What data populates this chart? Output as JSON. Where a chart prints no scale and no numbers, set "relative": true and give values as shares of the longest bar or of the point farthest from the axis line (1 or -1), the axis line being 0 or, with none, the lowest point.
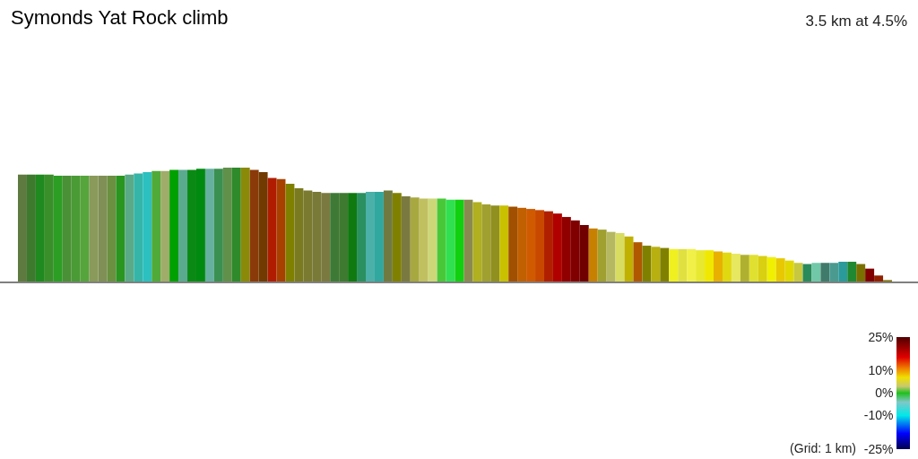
{
  "chart_data": {
    "type": "bar",
    "title": "Symonds Yat Rock climb",
    "relative": true,
    "categories": [
      null,
      null,
      null,
      null,
      null,
      null,
      null,
      null,
      null,
      null,
      null,
      null,
      null,
      null,
      null,
      null,
      null,
      null,
      null,
      null,
      null,
      null,
      null,
      null,
      null,
      null,
      null,
      null,
      null,
      null,
      null,
      null,
      null,
      null,
      null,
      null,
      null,
      null,
      null,
      null,
      null,
      null,
      null,
      null,
      null,
      null,
      null,
      null,
      null,
      null,
      null,
      null,
      null,
      null,
      null,
      null,
      null,
      null,
      null,
      null,
      null,
      null,
      null,
      null,
      null,
      null,
      null,
      null,
      null,
      null,
      null,
      null,
      null,
      null,
      null,
      null,
      null,
      null,
      null,
      null,
      null,
      null,
      null,
      null,
      null,
      null,
      null,
      null,
      null,
      null,
      null,
      null,
      null,
      null,
      null,
      null,
      null,
      null
    ],
    "annotations": [
      "3.5 km at 4.5%",
      "(Grid: 1 km)"
    ],
    "values": [
      0.94,
      0.94,
      0.94,
      0.94,
      0.93,
      0.93,
      0.93,
      0.93,
      0.93,
      0.93,
      0.93,
      0.93,
      0.94,
      0.95,
      0.96,
      0.97,
      0.97,
      0.98,
      0.98,
      0.98,
      0.99,
      0.99,
      0.99,
      1.0,
      1.0,
      1.0,
      0.98,
      0.96,
      0.91,
      0.9,
      0.86,
      0.82,
      0.8,
      0.79,
      0.78,
      0.78,
      0.78,
      0.78,
      0.78,
      0.79,
      0.79,
      0.8,
      0.78,
      0.75,
      0.74,
      0.73,
      0.73,
      0.73,
      0.72,
      0.72,
      0.72,
      0.7,
      0.68,
      0.67,
      0.67,
      0.66,
      0.65,
      0.64,
      0.63,
      0.62,
      0.6,
      0.57,
      0.54,
      0.5,
      0.47,
      0.46,
      0.44,
      0.43,
      0.4,
      0.35,
      0.32,
      0.31,
      0.3,
      0.29,
      0.29,
      0.29,
      0.28,
      0.28,
      0.27,
      0.26,
      0.25,
      0.24,
      0.24,
      0.23,
      0.22,
      0.21,
      0.19,
      0.17,
      0.16,
      0.17,
      0.17,
      0.17,
      0.18,
      0.18,
      0.16,
      0.12,
      0.06,
      0.02
    ],
    "colors": [
      "#5f7a40",
      "#3d7a2e",
      "#1f8a1f",
      "#3a8f2a",
      "#2c9e24",
      "#4a9036",
      "#4a9a36",
      "#55a53c",
      "#8a9a5a",
      "#7f8f55",
      "#6a9040",
      "#2a9620",
      "#5aaa88",
      "#35b5a8",
      "#2cc0c0",
      "#50aa38",
      "#a0ad6a",
      "#00a000",
      "#5aaa90",
      "#0a8a14",
      "#008a10",
      "#66b0a0",
      "#3a9050",
      "#60904a",
      "#2e8a2a",
      "#8a8a08",
      "#8a3a08",
      "#703a00",
      "#b01c00",
      "#a84000",
      "#808000",
      "#7a7a20",
      "#7a7a30",
      "#7a7a38",
      "#7a7a40",
      "#3e7a36",
      "#3e7a30",
      "#107a10",
      "#2a9060",
      "#4ab0a8",
      "#30a8a0",
      "#707a40",
      "#808000",
      "#7a7a40",
      "#a8a840",
      "#c0c060",
      "#ccd878",
      "#48c838",
      "#30e050",
      "#10d010",
      "#8a8a50",
      "#b0b020",
      "#a0a030",
      "#909020",
      "#c8c000",
      "#a05000",
      "#c06000",
      "#d05a00",
      "#c84800",
      "#b02000",
      "#b00000",
      "#900000",
      "#800000",
      "#700000",
      "#c88000",
      "#a0a030",
      "#b5b860",
      "#d8dc60",
      "#c0b000",
      "#b05800",
      "#808000",
      "#b8b010",
      "#808000",
      "#f0f020",
      "#e0e040",
      "#f0f048",
      "#e8e830",
      "#f0e800",
      "#e8b000",
      "#e0d810",
      "#e8e860",
      "#b0b030",
      "#e0e030",
      "#d8d010",
      "#f0f000",
      "#e8c800",
      "#e0d800",
      "#c8c840",
      "#2a8a5a",
      "#70c8a8",
      "#407a6a",
      "#4a9a90",
      "#2a9a9a",
      "#208830",
      "#7a7000",
      "#800000",
      "#902000",
      "#807000"
    ],
    "clim": [
      -25,
      25
    ],
    "cticks": [
      {
        "value": 25,
        "label": "25%"
      },
      {
        "value": 10,
        "label": "10%"
      },
      {
        "value": 0,
        "label": "0%"
      },
      {
        "value": -10,
        "label": "-10%"
      },
      {
        "value": -25,
        "label": "-25%"
      }
    ]
  }
}
